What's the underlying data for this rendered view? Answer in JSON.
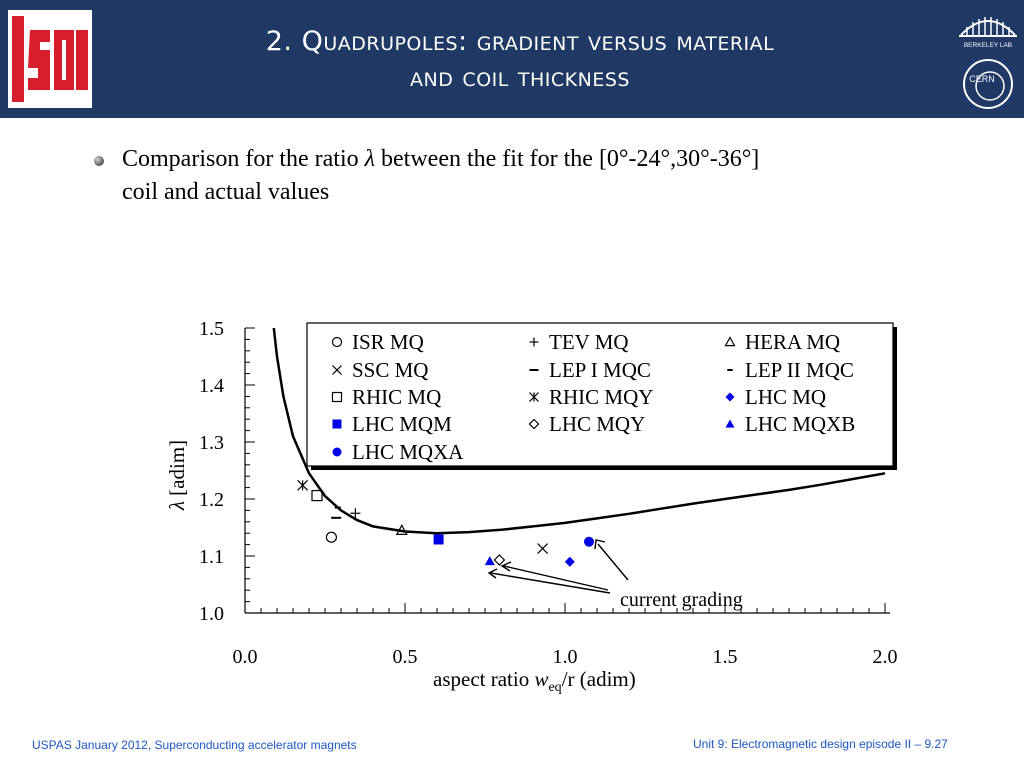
{
  "header": {
    "title_line1": "2. Quadrupoles: gradient versus material",
    "title_line2": "and coil thickness",
    "logo_left_text": "USPAS",
    "logo_right_top_text": "BERKELEY LAB",
    "logo_right_bottom_text": "CERN"
  },
  "body": {
    "bullet_line1_before": "Comparison for the ratio ",
    "bullet_lambda": "λ",
    "bullet_line1_after": " between the fit for the [0°-24°,30°-36°]",
    "bullet_line2": "coil and actual values"
  },
  "chart_data": {
    "type": "scatter",
    "xlabel_pre": "aspect ratio ",
    "xlabel_w": "w",
    "xlabel_sub": "eq",
    "xlabel_post": "/r   (adim)",
    "ylabel_lambda": "λ",
    "ylabel_unit": " [adim]",
    "xlim": [
      0.0,
      2.0
    ],
    "ylim": [
      1.0,
      1.5
    ],
    "xticks": [
      "0.0",
      "0.5",
      "1.0",
      "1.5",
      "2.0"
    ],
    "yticks": [
      "1.0",
      "1.1",
      "1.2",
      "1.3",
      "1.4",
      "1.5"
    ],
    "fit_curve": {
      "x": [
        0.09,
        0.1,
        0.12,
        0.15,
        0.2,
        0.25,
        0.3,
        0.35,
        0.4,
        0.5,
        0.6,
        0.7,
        0.8,
        0.9,
        1.0,
        1.1,
        1.2,
        1.3,
        1.4,
        1.5,
        1.6,
        1.7,
        1.8,
        1.9,
        2.0
      ],
      "y": [
        1.5,
        1.45,
        1.38,
        1.31,
        1.245,
        1.205,
        1.18,
        1.163,
        1.152,
        1.143,
        1.14,
        1.142,
        1.146,
        1.152,
        1.158,
        1.166,
        1.174,
        1.183,
        1.192,
        1.2,
        1.208,
        1.216,
        1.225,
        1.235,
        1.245
      ]
    },
    "series": [
      {
        "name": "ISR MQ",
        "marker": "circle-open",
        "color": "#000000",
        "points": [
          [
            0.27,
            1.133
          ]
        ]
      },
      {
        "name": "TEV MQ",
        "marker": "plus",
        "color": "#000000",
        "points": [
          [
            0.345,
            1.175
          ]
        ]
      },
      {
        "name": "HERA MQ",
        "marker": "triangle-open",
        "color": "#000000",
        "points": [
          [
            0.49,
            1.145
          ]
        ]
      },
      {
        "name": "SSC MQ",
        "marker": "x",
        "color": "#000000",
        "points": [
          [
            0.93,
            1.113
          ]
        ]
      },
      {
        "name": "LEP I MQC",
        "marker": "dash",
        "color": "#000000",
        "points": [
          [
            0.285,
            1.167
          ]
        ]
      },
      {
        "name": "LEP II MQC",
        "marker": "dash-short",
        "color": "#000000",
        "points": [
          [
            0.29,
            1.185
          ]
        ]
      },
      {
        "name": "RHIC MQ",
        "marker": "square-open",
        "color": "#000000",
        "points": [
          [
            0.225,
            1.206
          ]
        ]
      },
      {
        "name": "RHIC MQY",
        "marker": "asterisk",
        "color": "#000000",
        "points": [
          [
            0.18,
            1.224
          ]
        ]
      },
      {
        "name": "LHC MQ",
        "marker": "diamond-filled",
        "color": "#0000e6",
        "points": [
          [
            1.015,
            1.09
          ]
        ]
      },
      {
        "name": "LHC MQM",
        "marker": "square-filled",
        "color": "#0000e6",
        "points": [
          [
            0.605,
            1.129
          ]
        ]
      },
      {
        "name": "LHC MQY",
        "marker": "diamond-open",
        "color": "#000000",
        "points": [
          [
            0.795,
            1.093
          ]
        ]
      },
      {
        "name": "LHC MQXB",
        "marker": "triangle-filled",
        "color": "#0000e6",
        "points": [
          [
            0.765,
            1.091
          ]
        ]
      },
      {
        "name": "LHC MQXA",
        "marker": "circle-filled",
        "color": "#0000e6",
        "points": [
          [
            1.075,
            1.125
          ]
        ]
      }
    ],
    "annotation": "current grading",
    "legend_position": "top-right"
  },
  "footer": {
    "left": "USPAS January 2012,  Superconducting accelerator magnets",
    "right": "Unit 9: Electromagnetic design episode II – 9.27"
  }
}
